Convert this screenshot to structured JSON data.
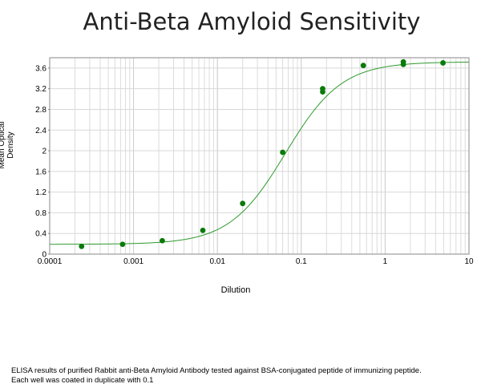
{
  "chart_data": {
    "type": "scatter",
    "title": "Anti-Beta Amyloid Sensitivity",
    "xlabel": "Dilution",
    "ylabel": "Mean Optical Density",
    "xscale": "log",
    "xlim": [
      0.0001,
      10
    ],
    "ylim": [
      0,
      3.8
    ],
    "grid": true,
    "x_ticks": [
      "0.0001",
      "0.001",
      "0.01",
      "0.1",
      "1",
      "10"
    ],
    "y_ticks": [
      "0",
      "0.4",
      "0.8",
      "1.2",
      "1.6",
      "2",
      "2.4",
      "2.8",
      "3.2",
      "3.6"
    ],
    "point_color": "#0a7a0a",
    "curve_color": "#2e9a2e",
    "points": [
      {
        "x": 0.00024,
        "y": 0.15
      },
      {
        "x": 0.00074,
        "y": 0.19
      },
      {
        "x": 0.0022,
        "y": 0.26
      },
      {
        "x": 0.0067,
        "y": 0.46
      },
      {
        "x": 0.02,
        "y": 0.98
      },
      {
        "x": 0.06,
        "y": 1.97
      },
      {
        "x": 0.18,
        "y": 3.14
      },
      {
        "x": 0.18,
        "y": 3.2
      },
      {
        "x": 0.55,
        "y": 3.65
      },
      {
        "x": 1.65,
        "y": 3.67
      },
      {
        "x": 1.65,
        "y": 3.72
      },
      {
        "x": 4.9,
        "y": 3.7
      }
    ],
    "fit_curve": {
      "bottom": 0.19,
      "top": 3.72,
      "ec50": 0.065,
      "hill": 1.3
    }
  },
  "caption": {
    "line1": "ELISA results of purified Rabbit anti-Beta Amyloid Antibody tested against BSA-conjugated peptide of immunizing peptide.",
    "line2": "Each well was coated in duplicate with 0.1"
  }
}
